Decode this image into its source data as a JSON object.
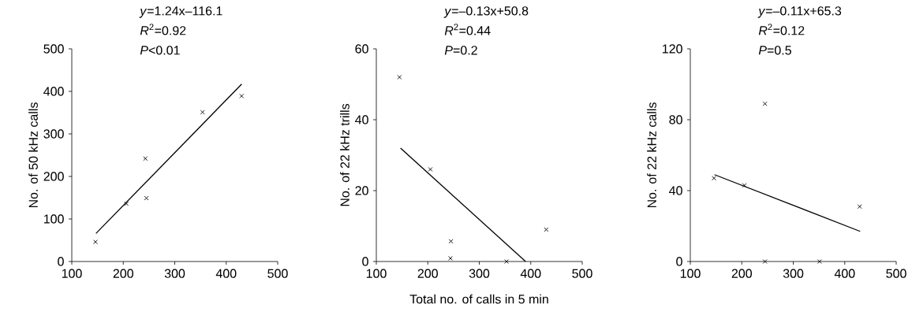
{
  "chart_data": [
    {
      "type": "scatter",
      "ylabel": "No. of 50 kHz calls",
      "annotations": [
        "*y*=1.24x–116.1",
        "*R*$^{2}$=0.92",
        "*P*<0.01"
      ],
      "xlim": [
        100,
        500
      ],
      "ylim": [
        0,
        500
      ],
      "xticks": [
        100,
        200,
        300,
        400,
        500
      ],
      "yticks": [
        0,
        100,
        200,
        300,
        400,
        500
      ],
      "series": [
        {
          "marker": "cross",
          "color": "#000000",
          "x": [
            146,
            206,
            243,
            245,
            354,
            430
          ],
          "values": [
            46,
            136,
            242,
            149,
            351,
            389
          ]
        },
        {
          "type": "line",
          "marker": "none",
          "color": "#000000",
          "x": [
            147,
            430
          ],
          "values": [
            66,
            417
          ]
        }
      ]
    },
    {
      "type": "scatter",
      "xlabel": "Total no. of calls in 5 min",
      "ylabel": "No. of 22 kHz trills",
      "annotations": [
        "*y*=–0.13x+50.8",
        "*R*$^{2}$=0.44",
        "*P*=0.2"
      ],
      "xlim": [
        100,
        500
      ],
      "ylim": [
        0,
        60
      ],
      "xticks": [
        100,
        200,
        300,
        400,
        500
      ],
      "yticks": [
        0,
        20,
        40,
        60
      ],
      "series": [
        {
          "marker": "cross",
          "color": "#000000",
          "x": [
            145,
            205,
            245,
            244,
            353,
            430
          ],
          "values": [
            52,
            26,
            5.7,
            0.9,
            0,
            9
          ]
        },
        {
          "type": "line",
          "marker": "none",
          "color": "#000000",
          "x": [
            147,
            390
          ],
          "values": [
            32,
            0
          ]
        }
      ]
    },
    {
      "type": "scatter",
      "ylabel": "No. of 22 kHz calls",
      "annotations": [
        "*y*=–0.11x+65.3",
        "*R*$^{2}$=0.12",
        "*P*=0.5"
      ],
      "xlim": [
        100,
        500
      ],
      "ylim": [
        0,
        120
      ],
      "xticks": [
        100,
        200,
        300,
        400,
        500
      ],
      "yticks": [
        0,
        40,
        80,
        120
      ],
      "series": [
        {
          "marker": "cross",
          "color": "#000000",
          "x": [
            146,
            205,
            245,
            245,
            351,
            429
          ],
          "values": [
            47,
            43,
            89,
            0,
            0,
            31
          ]
        },
        {
          "type": "line",
          "marker": "none",
          "color": "#000000",
          "x": [
            147,
            430
          ],
          "values": [
            49,
            17
          ]
        }
      ]
    }
  ]
}
